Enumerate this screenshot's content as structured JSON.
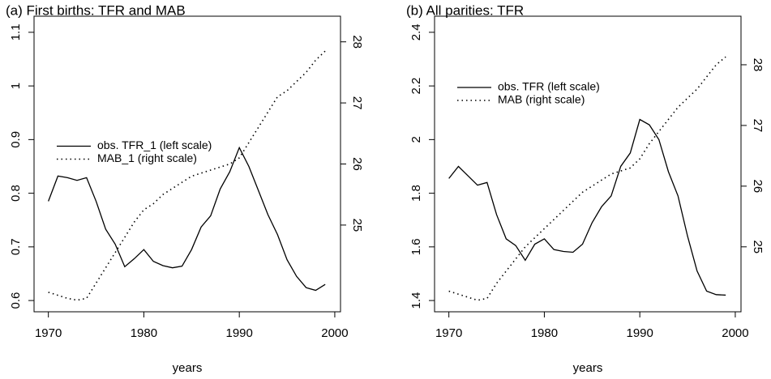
{
  "chart_data": [
    {
      "type": "line",
      "title": "(a) First births: TFR and MAB",
      "xlabel": "years",
      "x": [
        1970,
        1971,
        1972,
        1973,
        1974,
        1975,
        1976,
        1977,
        1978,
        1979,
        1980,
        1981,
        1982,
        1983,
        1984,
        1985,
        1986,
        1987,
        1988,
        1989,
        1990,
        1991,
        1992,
        1993,
        1994,
        1995,
        1996,
        1997,
        1998,
        1999
      ],
      "xlim": [
        1968.5,
        2000.6
      ],
      "xticks": [
        1970,
        1980,
        1990,
        2000
      ],
      "ylim": [
        0.579,
        1.13
      ],
      "yticks": [
        0.6,
        0.7,
        0.8,
        0.9,
        1.0,
        1.1
      ],
      "y2lim": [
        23.58,
        28.42
      ],
      "y2ticks": [
        25,
        26,
        27,
        28
      ],
      "legend": "center-left",
      "series": [
        {
          "name": "obs. TFR_1 (left scale)",
          "color": "#000000",
          "dash": "solid",
          "values": [
            0.785,
            0.832,
            0.829,
            0.824,
            0.829,
            0.785,
            0.733,
            0.705,
            0.663,
            0.678,
            0.695,
            0.673,
            0.665,
            0.661,
            0.664,
            0.695,
            0.737,
            0.758,
            0.808,
            0.84,
            0.885,
            0.85,
            0.805,
            0.76,
            0.723,
            0.676,
            0.645,
            0.624,
            0.619,
            0.63
          ]
        },
        {
          "name": "MAB_1 (right scale)",
          "color": "#000000",
          "dash": "dotted",
          "axis": "y2",
          "values": [
            23.9,
            23.85,
            23.8,
            23.77,
            23.8,
            24.05,
            24.3,
            24.55,
            24.8,
            25.05,
            25.25,
            25.35,
            25.5,
            25.6,
            25.7,
            25.8,
            25.85,
            25.9,
            25.95,
            26.0,
            26.1,
            26.35,
            26.6,
            26.85,
            27.1,
            27.2,
            27.35,
            27.5,
            27.7,
            27.85
          ]
        }
      ]
    },
    {
      "type": "line",
      "title": "(b) All parities: TFR",
      "xlabel": "years",
      "x": [
        1970,
        1971,
        1972,
        1973,
        1974,
        1975,
        1976,
        1977,
        1978,
        1979,
        1980,
        1981,
        1982,
        1983,
        1984,
        1985,
        1986,
        1987,
        1988,
        1989,
        1990,
        1991,
        1992,
        1993,
        1994,
        1995,
        1996,
        1997,
        1998,
        1999
      ],
      "xlim": [
        1968.5,
        2000.6
      ],
      "xticks": [
        1970,
        1980,
        1990,
        2000
      ],
      "ylim": [
        1.358,
        2.46
      ],
      "yticks": [
        1.4,
        1.6,
        1.8,
        2.0,
        2.2,
        2.4
      ],
      "y2lim": [
        23.93,
        28.8
      ],
      "y2ticks": [
        25,
        26,
        27,
        28
      ],
      "legend": "upper-left",
      "series": [
        {
          "name": "obs. TFR (left scale)",
          "color": "#000000",
          "dash": "solid",
          "values": [
            1.855,
            1.9,
            1.865,
            1.83,
            1.84,
            1.72,
            1.63,
            1.605,
            1.55,
            1.61,
            1.63,
            1.59,
            1.583,
            1.58,
            1.61,
            1.69,
            1.75,
            1.79,
            1.9,
            1.95,
            2.075,
            2.055,
            2.0,
            1.88,
            1.79,
            1.64,
            1.51,
            1.435,
            1.422,
            1.42
          ]
        },
        {
          "name": "MAB (right scale)",
          "color": "#000000",
          "dash": "dotted",
          "axis": "y2",
          "values": [
            24.27,
            24.22,
            24.17,
            24.12,
            24.15,
            24.4,
            24.6,
            24.8,
            25.0,
            25.15,
            25.3,
            25.45,
            25.6,
            25.75,
            25.9,
            26.0,
            26.1,
            26.2,
            26.25,
            26.3,
            26.45,
            26.7,
            26.9,
            27.1,
            27.3,
            27.45,
            27.6,
            27.8,
            28.0,
            28.13
          ]
        }
      ]
    }
  ]
}
